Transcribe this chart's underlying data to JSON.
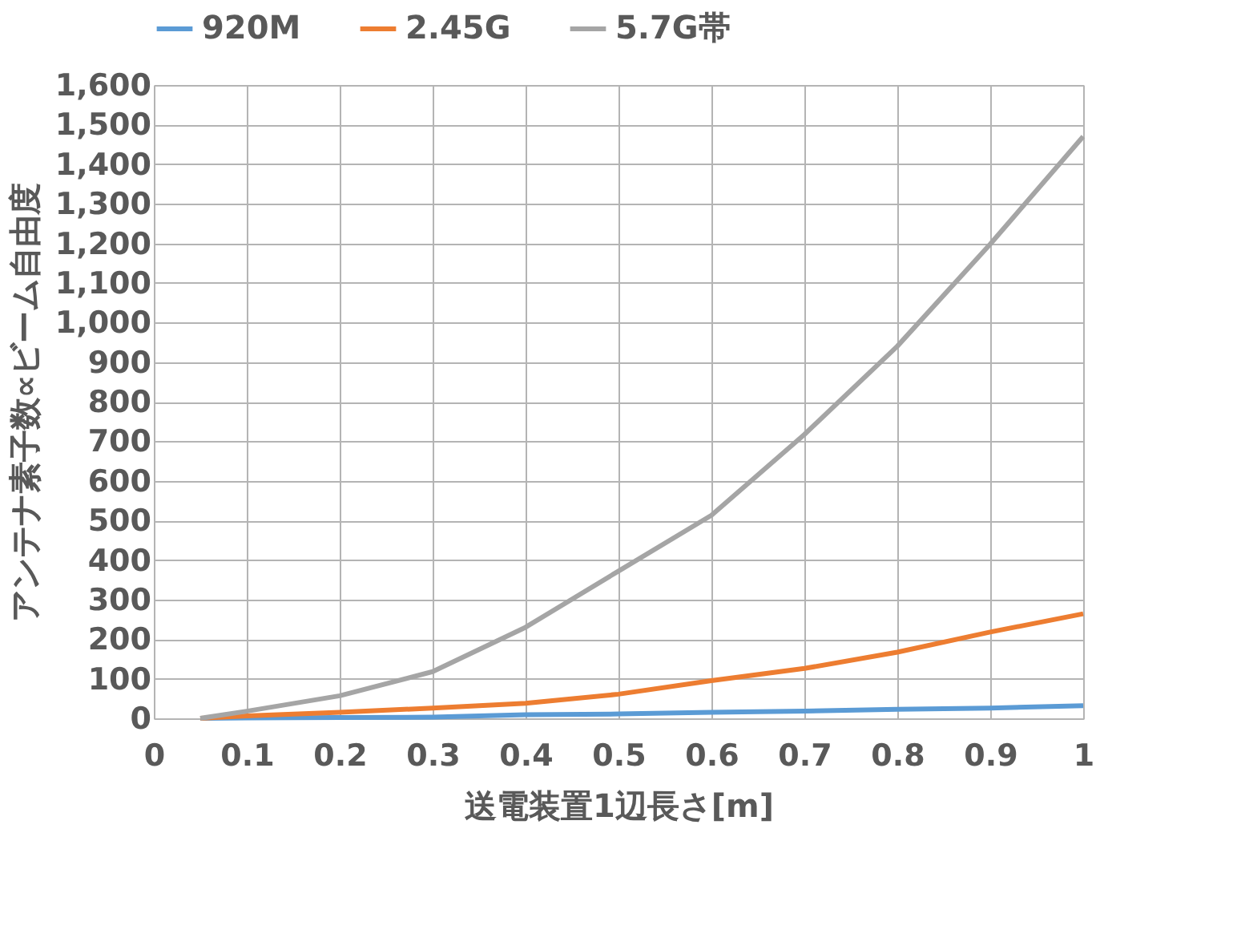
{
  "chart_data": {
    "type": "line",
    "xlabel": "送電装置1辺長さ[m]",
    "ylabel": "アンテナ素子数∝ビーム自由度",
    "x": [
      0.05,
      0.1,
      0.2,
      0.3,
      0.4,
      0.5,
      0.6,
      0.7,
      0.8,
      0.9,
      1.0
    ],
    "series": [
      {
        "name": "920M",
        "color": "#5b9bd5",
        "values": [
          0,
          1,
          2,
          3,
          9,
          11,
          15,
          18,
          23,
          26,
          32
        ]
      },
      {
        "name": "2.45G",
        "color": "#ed7d31",
        "values": [
          0,
          6,
          15,
          26,
          38,
          61,
          95,
          126,
          167,
          218,
          264
        ]
      },
      {
        "name": "5.7G帯",
        "color": "#a5a5a5",
        "values": [
          0,
          18,
          57,
          118,
          230,
          372,
          513,
          717,
          940,
          1198,
          1470
        ]
      }
    ],
    "xlim": [
      0,
      1
    ],
    "xticks": [
      0,
      0.1,
      0.2,
      0.3,
      0.4,
      0.5,
      0.6,
      0.7,
      0.8,
      0.9,
      1
    ],
    "ylim": [
      0,
      1600
    ],
    "yticks": [
      {
        "value": 0,
        "label": "0"
      },
      {
        "value": 100,
        "label": "100"
      },
      {
        "value": 200,
        "label": "200"
      },
      {
        "value": 300,
        "label": "300"
      },
      {
        "value": 400,
        "label": "400"
      },
      {
        "value": 500,
        "label": "500"
      },
      {
        "value": 600,
        "label": "600"
      },
      {
        "value": 700,
        "label": "700"
      },
      {
        "value": 800,
        "label": "800"
      },
      {
        "value": 900,
        "label": "900"
      },
      {
        "value": 1000,
        "label": "1,000"
      },
      {
        "value": 1100,
        "label": "1,100"
      },
      {
        "value": 1200,
        "label": "1,200"
      },
      {
        "value": 1300,
        "label": "1,300"
      },
      {
        "value": 1400,
        "label": "1,400"
      },
      {
        "value": 1500,
        "label": "1,500"
      },
      {
        "value": 1600,
        "label": "1,600"
      }
    ],
    "grid": true,
    "legend": "top",
    "marker": "none",
    "line_style": "solid"
  }
}
